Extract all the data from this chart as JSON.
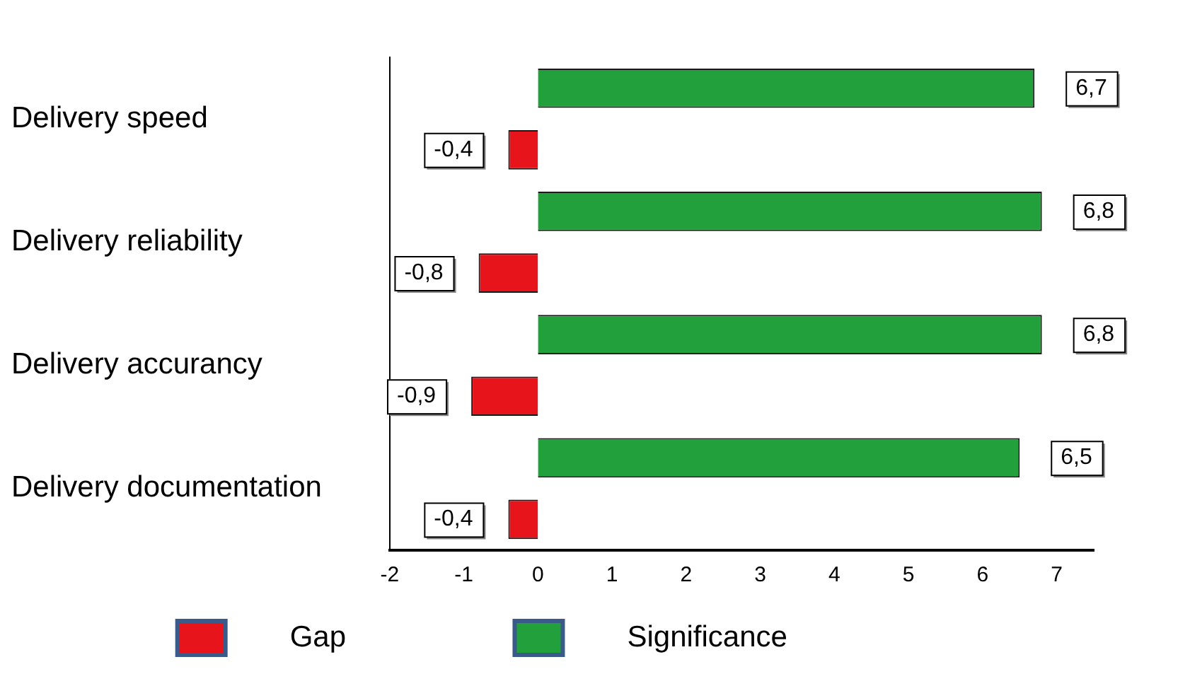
{
  "chart_data": {
    "type": "bar",
    "orientation": "horizontal",
    "categories": [
      "Delivery speed",
      "Delivery reliability",
      "Delivery accurancy",
      "Delivery documentation"
    ],
    "series": [
      {
        "name": "Gap",
        "color": "#e8141c",
        "values": [
          -0.4,
          -0.8,
          -0.9,
          -0.4
        ],
        "value_labels": [
          "-0,4",
          "-0,8",
          "-0,9",
          "-0,4"
        ]
      },
      {
        "name": "Significance",
        "color": "#22a03c",
        "values": [
          6.7,
          6.8,
          6.8,
          6.5
        ],
        "value_labels": [
          "6,7",
          "6,8",
          "6,8",
          "6,5"
        ]
      }
    ],
    "xlim": [
      -2,
      7.5
    ],
    "xticks": [
      -2,
      -1,
      0,
      1,
      2,
      3,
      4,
      5,
      6,
      7
    ],
    "grid": false,
    "legend": "bottom"
  }
}
